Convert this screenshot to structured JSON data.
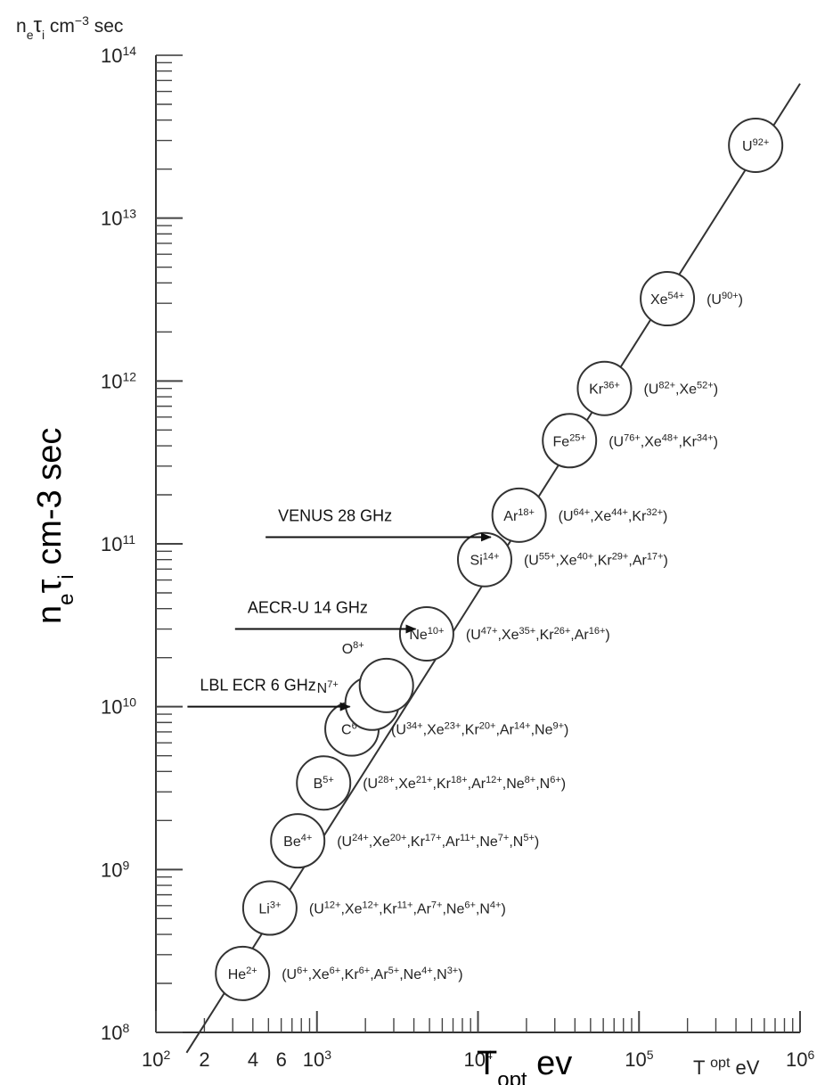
{
  "chart_data": {
    "type": "line",
    "xscale": "log",
    "yscale": "log",
    "xlim": [
      100,
      1000000
    ],
    "ylim": [
      100000000,
      100000000000000
    ],
    "top_label": "n_e τ_i cm^-3 sec",
    "ylabel": "n_e τ_i cm-3 sec",
    "xlabel": "T_opt ev",
    "xlabel_printed": "T opt eV",
    "x_tick_labels": [
      {
        "x": 100,
        "text": "10",
        "sup": "2"
      },
      {
        "x": 200,
        "text": "2",
        "sup": ""
      },
      {
        "x": 400,
        "text": "4",
        "sup": ""
      },
      {
        "x": 600,
        "text": "6",
        "sup": ""
      },
      {
        "x": 1000,
        "text": "10",
        "sup": "3"
      },
      {
        "x": 10000,
        "text": "10",
        "sup": "4"
      },
      {
        "x": 100000,
        "text": "10",
        "sup": "5"
      },
      {
        "x": 1000000,
        "text": "10",
        "sup": "6"
      }
    ],
    "y_tick_labels": [
      {
        "y": 100000000,
        "text": "10",
        "sup": "8"
      },
      {
        "y": 1000000000,
        "text": "10",
        "sup": "9"
      },
      {
        "y": 10000000000,
        "text": "10",
        "sup": "10"
      },
      {
        "y": 100000000000,
        "text": "10",
        "sup": "11"
      },
      {
        "y": 1000000000000,
        "text": "10",
        "sup": "12"
      },
      {
        "y": 10000000000000,
        "text": "10",
        "sup": "13"
      },
      {
        "y": 100000000000000,
        "text": "10",
        "sup": "14"
      }
    ],
    "series": [
      {
        "x": [
          155,
          1000000
        ],
        "y": [
          75000000,
          67000000000000
        ]
      }
    ],
    "ions": [
      {
        "base": "He",
        "charge": "2+",
        "x": 345,
        "y": 230000000,
        "equivalents": "(U6+,Xe6+,Kr6+,Ar5+,Ne4+,N3+)"
      },
      {
        "base": "Li",
        "charge": "3+",
        "x": 510,
        "y": 580000000,
        "equivalents": "(U12+,Xe12+,Kr11+,Ar7+,Ne6+,N4+)"
      },
      {
        "base": "Be",
        "charge": "4+",
        "x": 760,
        "y": 1500000000,
        "equivalents": "(U24+,Xe20+,Kr17+,Ar11+,Ne7+,N5+)"
      },
      {
        "base": "B",
        "charge": "5+",
        "x": 1100,
        "y": 3400000000,
        "equivalents": "(U28+,Xe21+,Kr18+,Ar12+,Ne8+,N6+)"
      },
      {
        "base": "C",
        "charge": "6+",
        "x": 1650,
        "y": 7300000000,
        "equivalents": "(U34+,Xe23+,Kr20+,Ar14+,Ne9+)"
      },
      {
        "base": "N",
        "charge": "7+",
        "x": 2200,
        "y": 10500000000,
        "equivalents": ""
      },
      {
        "base": "O",
        "charge": "8+",
        "x": 2700,
        "y": 13500000000,
        "equivalents": ""
      },
      {
        "base": "Ne",
        "charge": "10+",
        "x": 4800,
        "y": 28000000000,
        "equivalents": "(U47+,Xe35+,Kr26+,Ar16+)"
      },
      {
        "base": "Si",
        "charge": "14+",
        "x": 11000,
        "y": 80000000000,
        "equivalents": "(U55+,Xe40+,Kr29+,Ar17+)"
      },
      {
        "base": "Ar",
        "charge": "18+",
        "x": 18000,
        "y": 150000000000,
        "equivalents": "(U64+,Xe44+,Kr32+)"
      },
      {
        "base": "Fe",
        "charge": "25+",
        "x": 37000,
        "y": 430000000000,
        "equivalents": "(U76+,Xe48+,Kr34+)"
      },
      {
        "base": "Kr",
        "charge": "36+",
        "x": 61000,
        "y": 900000000000,
        "equivalents": "(U82+,Xe52+)"
      },
      {
        "base": "Xe",
        "charge": "54+",
        "x": 150000,
        "y": 3200000000000,
        "equivalents": "(U90+)"
      },
      {
        "base": "U",
        "charge": "92+",
        "x": 530000,
        "y": 28000000000000,
        "equivalents": ""
      }
    ],
    "annotations": [
      {
        "text": "VENUS 28 GHz",
        "arrow_from_x": 480,
        "arrow_to_x": 12000,
        "arrow_y": 110000000000
      },
      {
        "text": "AECR-U 14 GHz",
        "arrow_from_x": 310,
        "arrow_to_x": 4100,
        "arrow_y": 30000000000
      },
      {
        "text": "LBL ECR 6 GHz",
        "arrow_from_x": 157,
        "arrow_to_x": 1600,
        "arrow_y": 10000000000
      }
    ]
  }
}
